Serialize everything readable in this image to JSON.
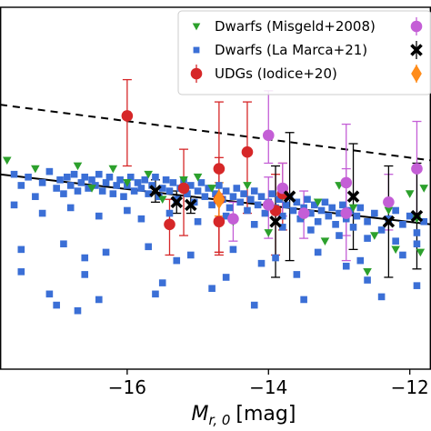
{
  "chart_data": {
    "type": "scatter",
    "xlabel_main": "M",
    "xlabel_sub": "r, 0",
    "xlabel_unit": "[mag]",
    "xlim": [
      -17.8,
      -11.7
    ],
    "ylim": [
      0,
      13
    ],
    "x_ticks": [
      {
        "value": -16,
        "label": "−16"
      },
      {
        "value": -14,
        "label": "−14"
      },
      {
        "value": -12,
        "label": "−12"
      }
    ],
    "colors": {
      "dwarfs_misgeld": "#2ca02c",
      "dwarfs_lamarca": "#3b6fd6",
      "udgs_iodice": "#d62728",
      "purple": "#c45ed6",
      "black": "#000000",
      "orange": "#ff8c1a"
    },
    "legend": {
      "position": "top-right",
      "entries": [
        {
          "marker": "triangle",
          "color_key": "dwarfs_misgeld",
          "label": "Dwarfs (Misgeld+2008)"
        },
        {
          "marker": "square",
          "color_key": "dwarfs_lamarca",
          "label": "Dwarfs (La Marca+21)"
        },
        {
          "marker": "circle-errorbar",
          "color_key": "udgs_iodice",
          "label": "UDGs (Iodice+20)"
        }
      ],
      "extra_markers": [
        {
          "marker": "circle-errorbar",
          "color_key": "purple"
        },
        {
          "marker": "x-errorbar",
          "color_key": "black"
        },
        {
          "marker": "diamond-errorbar",
          "color_key": "orange"
        }
      ]
    },
    "lines": [
      {
        "style": "solid",
        "points": [
          [
            -17.8,
            7.0
          ],
          [
            -11.7,
            5.2
          ]
        ]
      },
      {
        "style": "dashed",
        "points": [
          [
            -17.8,
            9.5
          ],
          [
            -11.7,
            7.5
          ]
        ]
      }
    ],
    "series": [
      {
        "color_key": "dwarfs_lamarca",
        "marker": "square",
        "points": [
          [
            -17.6,
            7.0
          ],
          [
            -17.5,
            6.6
          ],
          [
            -17.4,
            6.9
          ],
          [
            -17.3,
            6.2
          ],
          [
            -17.2,
            6.7
          ],
          [
            -17.1,
            7.1
          ],
          [
            -17.0,
            6.5
          ],
          [
            -16.95,
            6.8
          ],
          [
            -16.9,
            6.3
          ],
          [
            -16.85,
            6.9
          ],
          [
            -16.8,
            6.6
          ],
          [
            -16.75,
            7.0
          ],
          [
            -16.7,
            6.4
          ],
          [
            -16.65,
            6.7
          ],
          [
            -16.6,
            6.9
          ],
          [
            -16.55,
            6.5
          ],
          [
            -16.5,
            6.8
          ],
          [
            -16.45,
            6.6
          ],
          [
            -16.4,
            7.0
          ],
          [
            -16.35,
            6.4
          ],
          [
            -16.3,
            6.7
          ],
          [
            -16.25,
            6.9
          ],
          [
            -16.2,
            6.3
          ],
          [
            -16.15,
            6.6
          ],
          [
            -16.1,
            6.8
          ],
          [
            -16.05,
            6.2
          ],
          [
            -16.0,
            6.6
          ],
          [
            -15.95,
            6.9
          ],
          [
            -15.9,
            6.4
          ],
          [
            -15.85,
            6.7
          ],
          [
            -15.8,
            6.5
          ],
          [
            -15.75,
            6.8
          ],
          [
            -15.7,
            6.3
          ],
          [
            -15.65,
            6.6
          ],
          [
            -15.6,
            6.9
          ],
          [
            -15.55,
            6.2
          ],
          [
            -15.5,
            6.5
          ],
          [
            -15.45,
            6.8
          ],
          [
            -15.4,
            6.4
          ],
          [
            -15.35,
            6.7
          ],
          [
            -15.3,
            6.1
          ],
          [
            -15.25,
            6.5
          ],
          [
            -15.2,
            6.8
          ],
          [
            -15.15,
            6.3
          ],
          [
            -15.1,
            6.6
          ],
          [
            -15.05,
            6.0
          ],
          [
            -15.0,
            6.4
          ],
          [
            -14.95,
            6.7
          ],
          [
            -14.9,
            6.2
          ],
          [
            -14.85,
            6.5
          ],
          [
            -14.8,
            5.9
          ],
          [
            -14.75,
            6.3
          ],
          [
            -14.7,
            6.6
          ],
          [
            -14.65,
            6.1
          ],
          [
            -14.6,
            6.4
          ],
          [
            -14.55,
            5.8
          ],
          [
            -14.5,
            6.2
          ],
          [
            -14.45,
            6.5
          ],
          [
            -14.4,
            6.0
          ],
          [
            -14.35,
            6.3
          ],
          [
            -14.3,
            5.7
          ],
          [
            -14.25,
            6.1
          ],
          [
            -14.2,
            6.4
          ],
          [
            -14.15,
            5.9
          ],
          [
            -14.1,
            6.2
          ],
          [
            -14.05,
            5.6
          ],
          [
            -14.0,
            6.0
          ],
          [
            -13.95,
            6.3
          ],
          [
            -13.9,
            5.8
          ],
          [
            -13.85,
            6.1
          ],
          [
            -13.8,
            5.5
          ],
          [
            -13.75,
            5.9
          ],
          [
            -13.7,
            6.2
          ],
          [
            -13.65,
            5.7
          ],
          [
            -13.6,
            6.0
          ],
          [
            -13.55,
            5.4
          ],
          [
            -13.5,
            5.8
          ],
          [
            -13.45,
            6.1
          ],
          [
            -13.4,
            5.6
          ],
          [
            -13.35,
            5.9
          ],
          [
            -13.3,
            5.3
          ],
          [
            -13.25,
            5.7
          ],
          [
            -13.2,
            6.0
          ],
          [
            -13.15,
            5.5
          ],
          [
            -13.1,
            5.8
          ],
          [
            -13.05,
            5.2
          ],
          [
            -13.0,
            5.6
          ],
          [
            -12.95,
            5.9
          ],
          [
            -12.9,
            5.4
          ],
          [
            -12.85,
            5.7
          ],
          [
            -12.8,
            5.1
          ],
          [
            -12.75,
            5.5
          ],
          [
            -12.7,
            5.8
          ],
          [
            -12.6,
            5.3
          ],
          [
            -12.5,
            5.6
          ],
          [
            -12.4,
            5.0
          ],
          [
            -12.3,
            5.4
          ],
          [
            -12.2,
            5.7
          ],
          [
            -12.1,
            5.2
          ],
          [
            -12.0,
            5.5
          ],
          [
            -11.9,
            4.9
          ],
          [
            -11.8,
            5.3
          ],
          [
            -17.6,
            5.9
          ],
          [
            -17.2,
            5.6
          ],
          [
            -16.8,
            5.8
          ],
          [
            -16.4,
            5.5
          ],
          [
            -16.0,
            5.7
          ],
          [
            -15.8,
            5.4
          ],
          [
            -15.4,
            5.6
          ],
          [
            -15.0,
            5.3
          ],
          [
            -14.6,
            5.5
          ],
          [
            -14.2,
            5.2
          ],
          [
            -13.8,
            5.1
          ],
          [
            -13.4,
            5.0
          ],
          [
            -13.0,
            4.8
          ],
          [
            -12.6,
            4.7
          ],
          [
            -12.2,
            4.6
          ],
          [
            -11.9,
            4.5
          ],
          [
            -17.5,
            4.3
          ],
          [
            -16.9,
            4.5
          ],
          [
            -16.3,
            4.2
          ],
          [
            -15.7,
            4.4
          ],
          [
            -15.1,
            4.1
          ],
          [
            -14.5,
            4.3
          ],
          [
            -13.9,
            4.0
          ],
          [
            -13.3,
            4.2
          ],
          [
            -12.7,
            3.9
          ],
          [
            -12.1,
            4.1
          ],
          [
            -16.6,
            4.0
          ],
          [
            -15.3,
            3.9
          ],
          [
            -14.1,
            3.8
          ],
          [
            -12.9,
            3.7
          ],
          [
            -17.5,
            3.5
          ],
          [
            -16.6,
            3.4
          ],
          [
            -15.5,
            3.1
          ],
          [
            -14.6,
            3.3
          ],
          [
            -13.6,
            3.4
          ],
          [
            -12.6,
            3.2
          ],
          [
            -11.9,
            3.0
          ],
          [
            -17.1,
            2.7
          ],
          [
            -16.4,
            2.5
          ],
          [
            -15.6,
            2.7
          ],
          [
            -14.8,
            2.9
          ],
          [
            -13.5,
            2.5
          ],
          [
            -12.4,
            2.6
          ],
          [
            -17.0,
            2.3
          ],
          [
            -16.7,
            2.1
          ],
          [
            -14.2,
            2.3
          ]
        ]
      },
      {
        "color_key": "dwarfs_misgeld",
        "marker": "triangle",
        "points": [
          [
            -17.7,
            7.5
          ],
          [
            -17.3,
            7.2
          ],
          [
            -16.7,
            7.3
          ],
          [
            -16.2,
            7.2
          ],
          [
            -15.7,
            7.0
          ],
          [
            -15.2,
            6.8
          ],
          [
            -14.8,
            6.5
          ],
          [
            -14.3,
            6.6
          ],
          [
            -13.8,
            6.2
          ],
          [
            -13.3,
            6.0
          ],
          [
            -12.8,
            5.8
          ],
          [
            -12.3,
            5.7
          ],
          [
            -11.9,
            5.4
          ],
          [
            -11.8,
            6.5
          ],
          [
            -16.5,
            6.5
          ],
          [
            -15.0,
            6.9
          ],
          [
            -13.5,
            5.5
          ],
          [
            -12.5,
            4.8
          ],
          [
            -14.5,
            5.3
          ],
          [
            -13.0,
            6.6
          ],
          [
            -12.0,
            6.3
          ],
          [
            -11.85,
            4.2
          ],
          [
            -12.6,
            3.5
          ],
          [
            -13.2,
            4.6
          ],
          [
            -14.0,
            4.9
          ],
          [
            -15.5,
            6.1
          ],
          [
            -16.0,
            6.7
          ],
          [
            -12.2,
            4.3
          ]
        ]
      },
      {
        "color_key": "udgs_iodice",
        "marker": "circle",
        "points": [
          [
            -16.0,
            9.1,
            1.8,
            1.3
          ],
          [
            -15.4,
            5.2,
            1.1,
            0.9
          ],
          [
            -15.2,
            6.5,
            1.7,
            1.4
          ],
          [
            -14.7,
            7.2,
            3.0,
            2.4
          ],
          [
            -14.7,
            6.1,
            2.0,
            1.5
          ],
          [
            -14.7,
            5.3,
            1.1,
            1.0
          ],
          [
            -14.3,
            7.8,
            2.2,
            1.8
          ],
          [
            -13.9,
            5.7,
            1.6,
            1.3
          ],
          [
            -13.8,
            6.3,
            1.3,
            1.1
          ]
        ]
      },
      {
        "color_key": "purple",
        "marker": "circle",
        "points": [
          [
            -14.0,
            8.4,
            1.0,
            1.6
          ],
          [
            -14.0,
            5.9,
            1.2,
            1.0
          ],
          [
            -13.5,
            5.6,
            0.9,
            0.8
          ],
          [
            -12.9,
            6.7,
            1.9,
            2.1
          ],
          [
            -12.9,
            5.6,
            1.7,
            1.6
          ],
          [
            -12.3,
            6.0,
            1.0,
            1.0
          ],
          [
            -11.9,
            7.2,
            1.6,
            1.7
          ],
          [
            -14.5,
            5.4,
            0.8,
            0.6
          ],
          [
            -13.8,
            6.5,
            1.0,
            0.9
          ]
        ]
      },
      {
        "color_key": "black",
        "marker": "x",
        "points": [
          [
            -15.6,
            6.4,
            0.4,
            0.4
          ],
          [
            -15.3,
            6.0,
            0.4,
            0.4
          ],
          [
            -15.1,
            5.9,
            0.3,
            0.3
          ],
          [
            -13.9,
            5.3,
            2.0,
            2.0
          ],
          [
            -13.7,
            6.2,
            2.3,
            2.3
          ],
          [
            -12.8,
            6.2,
            1.9,
            1.9
          ],
          [
            -12.3,
            5.3,
            2.0,
            2.0
          ],
          [
            -11.9,
            5.5,
            1.9,
            1.9
          ]
        ]
      },
      {
        "color_key": "orange",
        "marker": "diamond",
        "points": [
          [
            -14.7,
            6.1,
            0.6,
            0.6
          ]
        ]
      }
    ]
  }
}
